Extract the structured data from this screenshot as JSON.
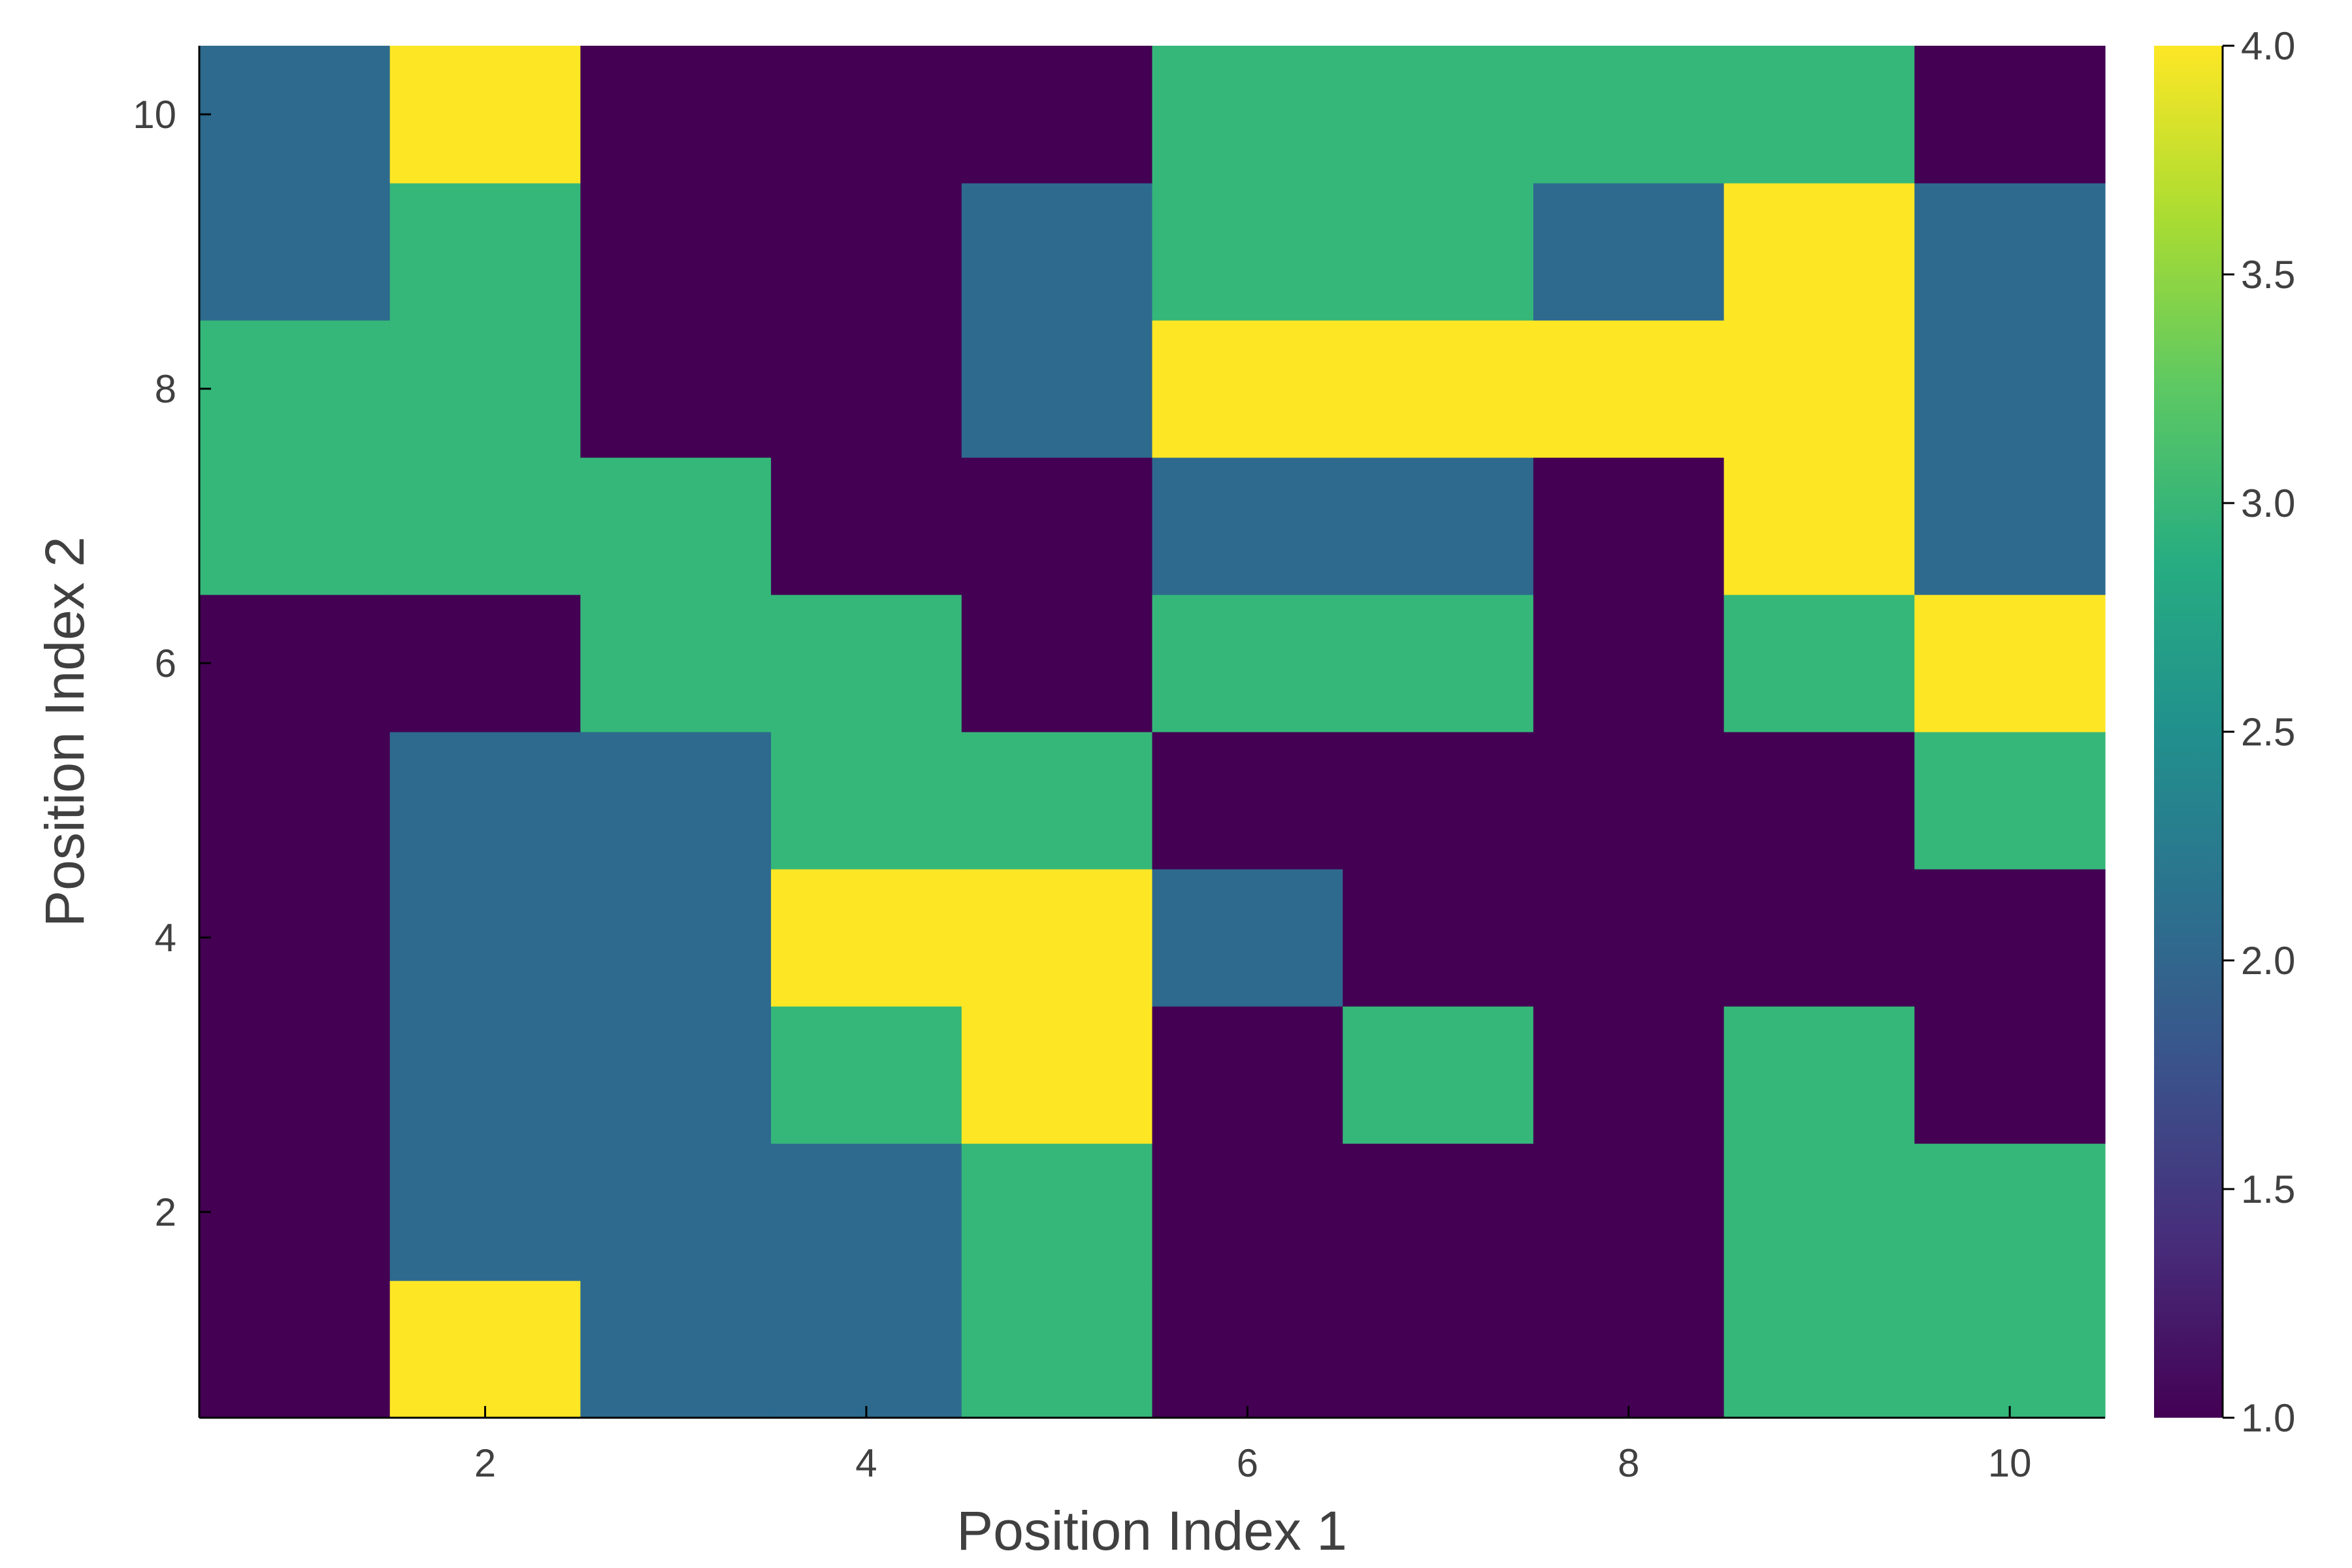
{
  "chart_data": {
    "type": "heatmap",
    "title": "",
    "xlabel": "Position Index 1",
    "ylabel": "Position Index 2",
    "x": [
      1,
      2,
      3,
      4,
      5,
      6,
      7,
      8,
      9,
      10
    ],
    "y": [
      1,
      2,
      3,
      4,
      5,
      6,
      7,
      8,
      9,
      10
    ],
    "xlim": [
      0.5,
      10.5
    ],
    "ylim": [
      0.5,
      10.5
    ],
    "xticks": [
      "2",
      "4",
      "6",
      "8",
      "10"
    ],
    "yticks": [
      "2",
      "4",
      "6",
      "8",
      "10"
    ],
    "z": [
      [
        1,
        4,
        2,
        2,
        3,
        1,
        1,
        1,
        3,
        3
      ],
      [
        1,
        2,
        2,
        2,
        3,
        1,
        1,
        1,
        3,
        3
      ],
      [
        1,
        2,
        2,
        3,
        4,
        1,
        3,
        1,
        3,
        1
      ],
      [
        1,
        2,
        2,
        4,
        4,
        2,
        1,
        1,
        1,
        1
      ],
      [
        1,
        2,
        2,
        3,
        3,
        1,
        1,
        1,
        1,
        3
      ],
      [
        1,
        1,
        3,
        3,
        1,
        3,
        3,
        1,
        3,
        4
      ],
      [
        3,
        3,
        3,
        1,
        1,
        2,
        2,
        1,
        4,
        2
      ],
      [
        3,
        3,
        1,
        1,
        2,
        4,
        4,
        4,
        4,
        2
      ],
      [
        2,
        3,
        1,
        1,
        2,
        3,
        3,
        2,
        4,
        2
      ],
      [
        2,
        4,
        1,
        1,
        1,
        3,
        3,
        3,
        3,
        1
      ]
    ],
    "colorbar": {
      "min": 1.0,
      "max": 4.0,
      "ticks": [
        "1.0",
        "1.5",
        "2.0",
        "2.5",
        "3.0",
        "3.5",
        "4.0"
      ],
      "colormap": "viridis"
    },
    "grid": false,
    "colors": {
      "1": "#440154",
      "2": "#2d6a8e",
      "3": "#35b779",
      "4": "#fde725"
    }
  }
}
